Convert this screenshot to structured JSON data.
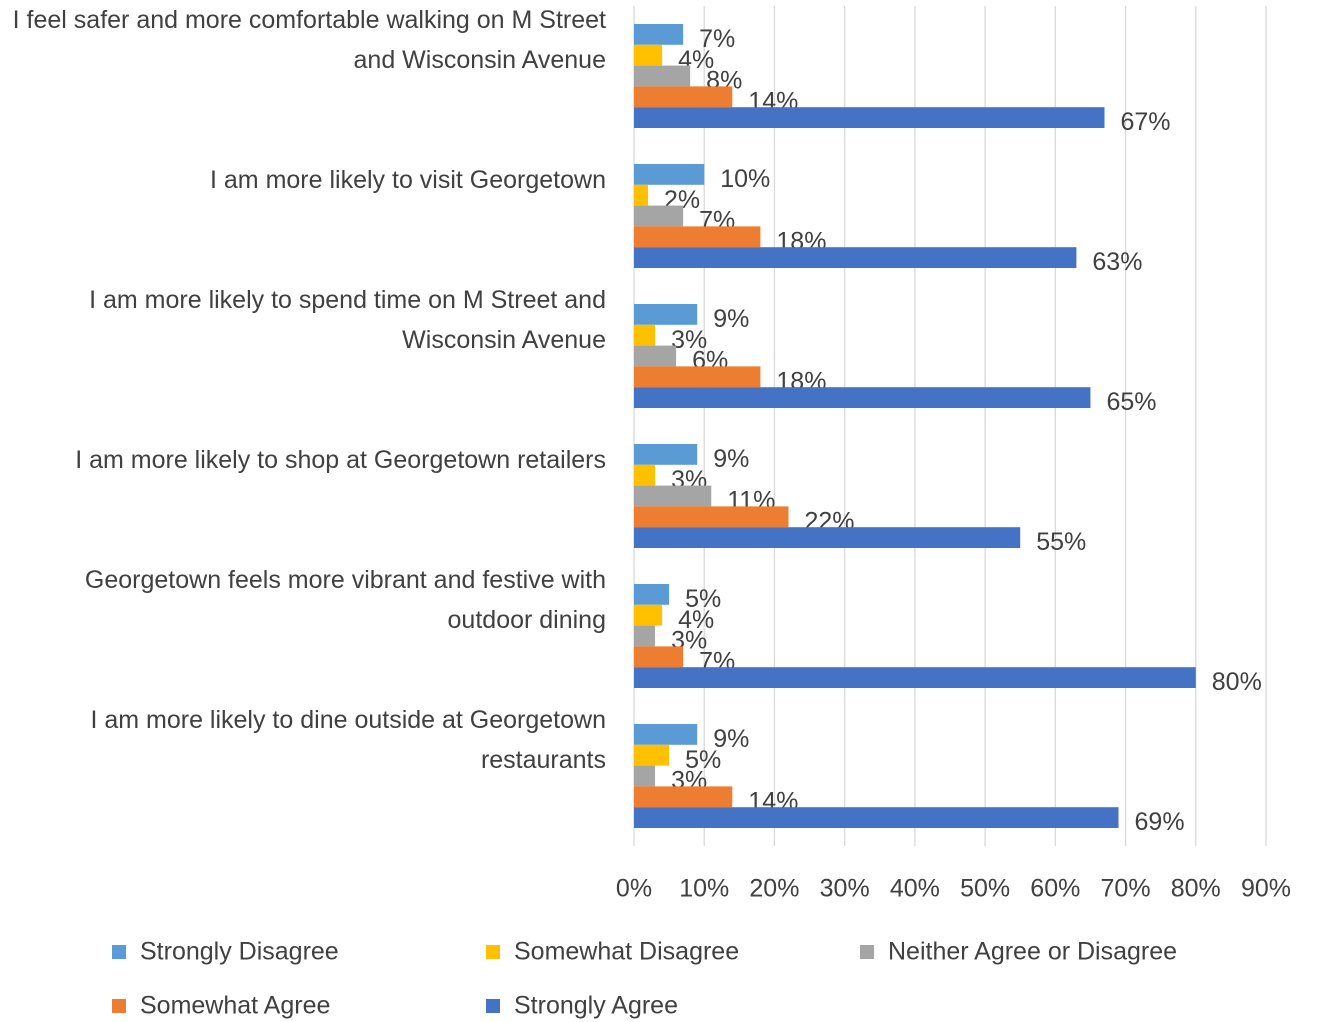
{
  "chart_data": {
    "type": "bar",
    "orientation": "horizontal",
    "categories": [
      "I feel safer and more comfortable walking on M Street and Wisconsin Avenue",
      "I am more likely to visit Georgetown",
      "I am more likely to spend time on M Street and Wisconsin Avenue",
      "I am more likely to shop at Georgetown retailers",
      "Georgetown feels more vibrant and festive with outdoor dining",
      "I am more likely to dine outside at Georgetown restaurants"
    ],
    "series": [
      {
        "name": "Strongly Disagree",
        "color": "#5b9bd5",
        "values": [
          7,
          10,
          9,
          9,
          5,
          9
        ],
        "value_labels": [
          "7%",
          "10%",
          "9%",
          "9%",
          "5%",
          "9%"
        ]
      },
      {
        "name": "Somewhat Disagree",
        "color": "#ffc000",
        "values": [
          4,
          2,
          3,
          3,
          4,
          5
        ],
        "value_labels": [
          "4%",
          "2%",
          "3%",
          "3%",
          "4%",
          "5%"
        ]
      },
      {
        "name": "Neither Agree or Disagree",
        "color": "#a5a5a5",
        "values": [
          8,
          7,
          6,
          11,
          3,
          3
        ],
        "value_labels": [
          "8%",
          "7%",
          "6%",
          "11%",
          "3%",
          "3%"
        ]
      },
      {
        "name": "Somewhat Agree",
        "color": "#ed7d31",
        "values": [
          14,
          18,
          18,
          22,
          7,
          14
        ],
        "value_labels": [
          "14%",
          "18%",
          "18%",
          "22%",
          "7%",
          "14%"
        ]
      },
      {
        "name": "Strongly Agree",
        "color": "#4472c4",
        "values": [
          67,
          63,
          65,
          55,
          80,
          69
        ],
        "value_labels": [
          "67%",
          "63%",
          "65%",
          "55%",
          "80%",
          "69%"
        ]
      }
    ],
    "xlim": [
      0,
      90
    ],
    "xticks": [
      {
        "value": 0,
        "label": "0%"
      },
      {
        "value": 10,
        "label": "10%"
      },
      {
        "value": 20,
        "label": "20%"
      },
      {
        "value": 30,
        "label": "30%"
      },
      {
        "value": 40,
        "label": "40%"
      },
      {
        "value": 50,
        "label": "50%"
      },
      {
        "value": 60,
        "label": "60%"
      },
      {
        "value": 70,
        "label": "70%"
      },
      {
        "value": 80,
        "label": "80%"
      },
      {
        "value": 90,
        "label": "90%"
      }
    ],
    "grid": true,
    "legend": "bottom"
  }
}
